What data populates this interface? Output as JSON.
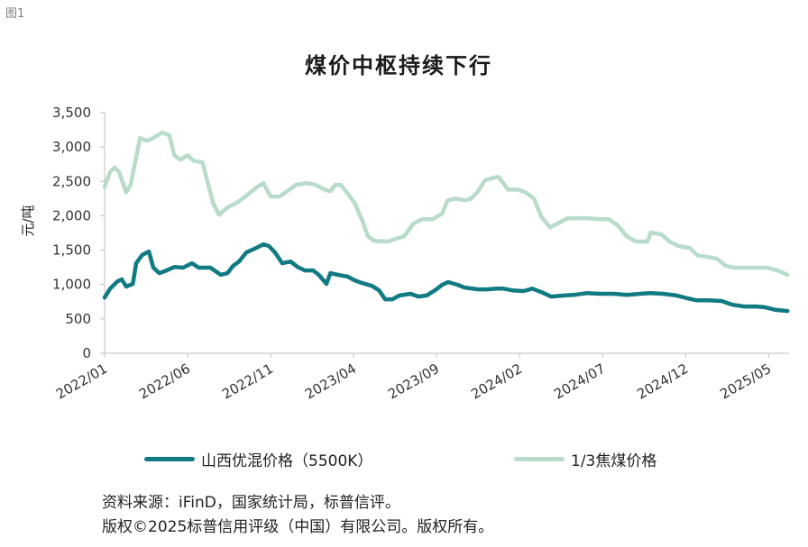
{
  "figure_label": "图1",
  "chart_data": {
    "type": "line",
    "title": "煤价中枢持续下行",
    "xlabel": "",
    "ylabel": "元/吨",
    "ylim": [
      0,
      3500
    ],
    "xlim": [
      "2022-01-01",
      "2025-06-08"
    ],
    "grid": false,
    "legend": "bottom",
    "yticks": [
      0,
      500,
      1000,
      1500,
      2000,
      2500,
      3000,
      3500
    ],
    "ytick_labels": [
      "0",
      "500",
      "1,000",
      "1,500",
      "2,000",
      "2,500",
      "3,000",
      "3,500"
    ],
    "xticks": [
      "2022-01-01",
      "2022-06-01",
      "2022-11-01",
      "2023-04-01",
      "2023-09-01",
      "2024-02-01",
      "2024-07-01",
      "2024-12-01",
      "2025-05-01"
    ],
    "xtick_labels": [
      "2022/01",
      "2022/06",
      "2022/11",
      "2023/04",
      "2023/09",
      "2024/02",
      "2024/07",
      "2024/12",
      "2025/05"
    ],
    "series": [
      {
        "name": "山西优混价格（5500K）",
        "color": "#117a82",
        "x": [
          "2022-01-01",
          "2022-01-11",
          "2022-01-24",
          "2022-02-02",
          "2022-02-10",
          "2022-02-22",
          "2022-02-28",
          "2022-03-09",
          "2022-03-21",
          "2022-03-29",
          "2022-04-10",
          "2022-04-23",
          "2022-05-07",
          "2022-05-23",
          "2022-06-09",
          "2022-06-21",
          "2022-07-12",
          "2022-08-01",
          "2022-08-13",
          "2022-08-23",
          "2022-09-04",
          "2022-09-17",
          "2022-10-02",
          "2022-10-18",
          "2022-10-28",
          "2022-11-09",
          "2022-11-22",
          "2022-12-07",
          "2022-12-20",
          "2023-01-03",
          "2023-01-18",
          "2023-01-28",
          "2023-02-12",
          "2023-02-19",
          "2023-03-03",
          "2023-03-20",
          "2023-04-03",
          "2023-04-17",
          "2023-05-04",
          "2023-05-17",
          "2023-05-28",
          "2023-06-11",
          "2023-06-24",
          "2023-07-14",
          "2023-07-28",
          "2023-08-13",
          "2023-08-28",
          "2023-09-11",
          "2023-09-22",
          "2023-10-09",
          "2023-10-22",
          "2023-11-16",
          "2023-12-02",
          "2023-12-19",
          "2024-01-02",
          "2024-01-18",
          "2024-02-08",
          "2024-02-24",
          "2024-03-10",
          "2024-03-28",
          "2024-04-21",
          "2024-05-10",
          "2024-06-02",
          "2024-06-26",
          "2024-07-21",
          "2024-08-15",
          "2024-09-09",
          "2024-09-28",
          "2024-10-20",
          "2024-11-15",
          "2024-12-04",
          "2024-12-21",
          "2025-01-12",
          "2025-02-06",
          "2025-02-26",
          "2025-03-17",
          "2025-04-08",
          "2025-04-24",
          "2025-05-14",
          "2025-06-05"
        ],
        "values": [
          810,
          940,
          1045,
          1075,
          970,
          1010,
          1310,
          1430,
          1480,
          1245,
          1165,
          1205,
          1255,
          1245,
          1310,
          1245,
          1245,
          1140,
          1165,
          1270,
          1335,
          1465,
          1520,
          1585,
          1560,
          1465,
          1310,
          1335,
          1255,
          1205,
          1205,
          1140,
          1010,
          1165,
          1140,
          1115,
          1060,
          1020,
          980,
          915,
          785,
          785,
          840,
          865,
          825,
          840,
          915,
          995,
          1035,
          995,
          955,
          930,
          930,
          940,
          940,
          915,
          905,
          940,
          890,
          825,
          840,
          850,
          875,
          865,
          865,
          850,
          865,
          875,
          865,
          840,
          800,
          770,
          770,
          760,
          705,
          680,
          680,
          670,
          630,
          615
        ]
      },
      {
        "name": "1/3焦煤价格",
        "color": "#b8dcc9",
        "x": [
          "2022-01-01",
          "2022-01-11",
          "2022-01-19",
          "2022-01-27",
          "2022-02-10",
          "2022-02-18",
          "2022-03-05",
          "2022-03-18",
          "2022-03-29",
          "2022-04-15",
          "2022-04-28",
          "2022-05-07",
          "2022-05-18",
          "2022-06-01",
          "2022-06-12",
          "2022-06-28",
          "2022-07-17",
          "2022-07-28",
          "2022-08-13",
          "2022-08-29",
          "2022-09-17",
          "2022-10-07",
          "2022-10-18",
          "2022-11-01",
          "2022-11-17",
          "2022-11-28",
          "2022-12-17",
          "2023-01-06",
          "2023-01-22",
          "2023-02-09",
          "2023-02-19",
          "2023-02-28",
          "2023-03-08",
          "2023-03-21",
          "2023-04-03",
          "2023-04-17",
          "2023-04-27",
          "2023-05-08",
          "2023-06-03",
          "2023-06-16",
          "2023-07-02",
          "2023-07-19",
          "2023-08-05",
          "2023-08-24",
          "2023-09-11",
          "2023-09-21",
          "2023-10-05",
          "2023-10-22",
          "2023-11-03",
          "2023-11-16",
          "2023-11-28",
          "2023-12-12",
          "2023-12-23",
          "2024-01-10",
          "2024-01-28",
          "2024-02-12",
          "2024-02-27",
          "2024-03-10",
          "2024-03-26",
          "2024-04-09",
          "2024-04-28",
          "2024-05-15",
          "2024-06-02",
          "2024-06-26",
          "2024-07-12",
          "2024-07-28",
          "2024-08-15",
          "2024-09-01",
          "2024-09-22",
          "2024-09-28",
          "2024-10-17",
          "2024-11-02",
          "2024-11-18",
          "2024-12-09",
          "2024-12-22",
          "2025-01-12",
          "2025-01-28",
          "2025-02-14",
          "2025-02-28",
          "2025-03-25",
          "2025-04-28",
          "2025-05-17",
          "2025-06-05"
        ],
        "values": [
          2420,
          2640,
          2700,
          2640,
          2340,
          2450,
          3130,
          3090,
          3130,
          3210,
          3170,
          2880,
          2815,
          2880,
          2800,
          2775,
          2185,
          2015,
          2120,
          2185,
          2290,
          2420,
          2475,
          2280,
          2280,
          2340,
          2450,
          2475,
          2450,
          2380,
          2355,
          2450,
          2450,
          2315,
          2185,
          1925,
          1700,
          1635,
          1625,
          1660,
          1700,
          1885,
          1950,
          1950,
          2030,
          2225,
          2250,
          2225,
          2250,
          2355,
          2515,
          2550,
          2565,
          2380,
          2380,
          2340,
          2250,
          1990,
          1830,
          1885,
          1965,
          1965,
          1965,
          1950,
          1950,
          1860,
          1700,
          1625,
          1625,
          1755,
          1730,
          1625,
          1560,
          1530,
          1425,
          1400,
          1375,
          1270,
          1245,
          1245,
          1245,
          1205,
          1140
        ]
      }
    ]
  },
  "source": {
    "line1": "资料来源：iFinD，国家统计局，标普信评。",
    "line2": "版权©2025标普信用评级（中国）有限公司。版权所有。"
  }
}
